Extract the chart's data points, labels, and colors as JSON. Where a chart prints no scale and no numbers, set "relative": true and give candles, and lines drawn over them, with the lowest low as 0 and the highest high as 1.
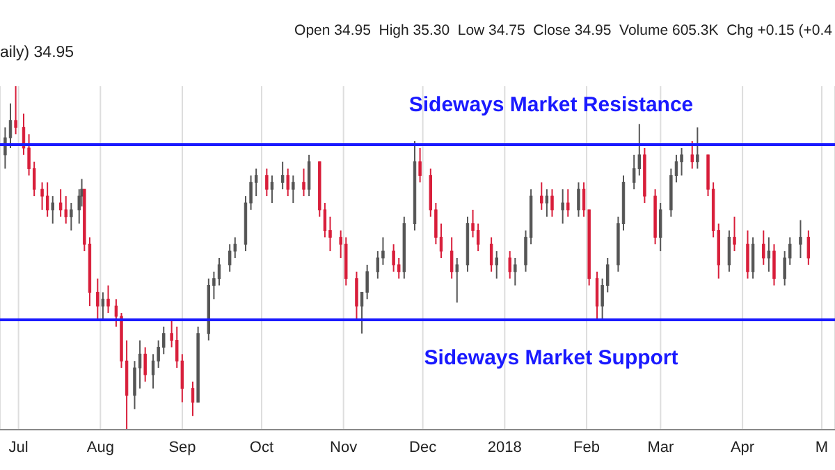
{
  "chart_data": {
    "type": "candlestick",
    "relative": true,
    "annotations": [
      "Open 34.95  High 35.30  Low 34.75  Close 34.95  Volume 605.3K  Chg +0.15 (+0.4",
      "aily) 34.95"
    ],
    "x": [
      "2017-06-26",
      "2017-06-28",
      "2017-06-30",
      "2017-07-03",
      "2017-07-05",
      "2017-07-07",
      "2017-07-10",
      "2017-07-12",
      "2017-07-14",
      "2017-07-17",
      "2017-07-19",
      "2017-07-21",
      "2017-07-24",
      "2017-07-25",
      "2017-07-26",
      "2017-07-28",
      "2017-07-31",
      "2017-08-02",
      "2017-08-04",
      "2017-08-07",
      "2017-08-09",
      "2017-08-11",
      "2017-08-14",
      "2017-08-16",
      "2017-08-18",
      "2017-08-21",
      "2017-08-23",
      "2017-08-25",
      "2017-08-28",
      "2017-08-30",
      "2017-09-01",
      "2017-09-05",
      "2017-09-07",
      "2017-09-11",
      "2017-09-13",
      "2017-09-15",
      "2017-09-19",
      "2017-09-21",
      "2017-09-25",
      "2017-09-27",
      "2017-09-29",
      "2017-10-03",
      "2017-10-05",
      "2017-10-09",
      "2017-10-11",
      "2017-10-13",
      "2017-10-17",
      "2017-10-19",
      "2017-10-23",
      "2017-10-25",
      "2017-10-27",
      "2017-10-31",
      "2017-11-02",
      "2017-11-06",
      "2017-11-08",
      "2017-11-10",
      "2017-11-14",
      "2017-11-16",
      "2017-11-20",
      "2017-11-22",
      "2017-11-24",
      "2017-11-28",
      "2017-11-30",
      "2017-12-04",
      "2017-12-06",
      "2017-12-08",
      "2017-12-12",
      "2017-12-14",
      "2017-12-18",
      "2017-12-20",
      "2017-12-22",
      "2017-12-27",
      "2017-12-29",
      "2018-01-03",
      "2018-01-05",
      "2018-01-09",
      "2018-01-11",
      "2018-01-15",
      "2018-01-17",
      "2018-01-19",
      "2018-01-23",
      "2018-01-25",
      "2018-01-29",
      "2018-01-31",
      "2018-02-02",
      "2018-02-05",
      "2018-02-07",
      "2018-02-09",
      "2018-02-13",
      "2018-02-15",
      "2018-02-19",
      "2018-02-21",
      "2018-02-23",
      "2018-02-27",
      "2018-03-01",
      "2018-03-05",
      "2018-03-07",
      "2018-03-09",
      "2018-03-13",
      "2018-03-15",
      "2018-03-19",
      "2018-03-21",
      "2018-03-23",
      "2018-03-27",
      "2018-03-29",
      "2018-04-03",
      "2018-04-05",
      "2018-04-09",
      "2018-04-11",
      "2018-04-13",
      "2018-04-17",
      "2018-04-19",
      "2018-04-23",
      "2018-04-26"
    ],
    "ohlc": [
      [
        0.8,
        0.88,
        0.76,
        0.85
      ],
      [
        0.85,
        0.95,
        0.82,
        0.9
      ],
      [
        0.9,
        1,
        0.86,
        0.88
      ],
      [
        0.88,
        0.92,
        0.8,
        0.82
      ],
      [
        0.82,
        0.86,
        0.74,
        0.76
      ],
      [
        0.76,
        0.78,
        0.68,
        0.7
      ],
      [
        0.7,
        0.72,
        0.64,
        0.68
      ],
      [
        0.68,
        0.72,
        0.62,
        0.64
      ],
      [
        0.64,
        0.68,
        0.6,
        0.66
      ],
      [
        0.66,
        0.7,
        0.62,
        0.64
      ],
      [
        0.64,
        0.68,
        0.6,
        0.62
      ],
      [
        0.62,
        0.66,
        0.58,
        0.64
      ],
      [
        0.64,
        0.7,
        0.6,
        0.68
      ],
      [
        0.68,
        0.73,
        0.65,
        0.7
      ],
      [
        0.7,
        0.7,
        0.52,
        0.54
      ],
      [
        0.54,
        0.56,
        0.36,
        0.4
      ],
      [
        0.4,
        0.44,
        0.32,
        0.36
      ],
      [
        0.36,
        0.4,
        0.32,
        0.38
      ],
      [
        0.38,
        0.42,
        0.34,
        0.36
      ],
      [
        0.36,
        0.38,
        0.3,
        0.33
      ],
      [
        0.33,
        0.34,
        0.18,
        0.2
      ],
      [
        0.2,
        0.26,
        0,
        0.1
      ],
      [
        0.1,
        0.2,
        0.06,
        0.18
      ],
      [
        0.18,
        0.26,
        0.12,
        0.22
      ],
      [
        0.22,
        0.24,
        0.14,
        0.16
      ],
      [
        0.16,
        0.22,
        0.12,
        0.2
      ],
      [
        0.2,
        0.26,
        0.18,
        0.24
      ],
      [
        0.24,
        0.3,
        0.22,
        0.28
      ],
      [
        0.28,
        0.32,
        0.24,
        0.26
      ],
      [
        0.26,
        0.3,
        0.18,
        0.2
      ],
      [
        0.2,
        0.22,
        0.08,
        0.12
      ],
      [
        0.12,
        0.14,
        0.04,
        0.08
      ],
      [
        0.08,
        0.3,
        0.08,
        0.28
      ],
      [
        0.28,
        0.44,
        0.26,
        0.42
      ],
      [
        0.42,
        0.46,
        0.38,
        0.44
      ],
      [
        0.44,
        0.5,
        0.42,
        0.48
      ],
      [
        0.48,
        0.54,
        0.46,
        0.52
      ],
      [
        0.52,
        0.56,
        0.5,
        0.54
      ],
      [
        0.54,
        0.68,
        0.52,
        0.66
      ],
      [
        0.66,
        0.74,
        0.64,
        0.72
      ],
      [
        0.72,
        0.76,
        0.68,
        0.74
      ],
      [
        0.74,
        0.76,
        0.68,
        0.7
      ],
      [
        0.7,
        0.74,
        0.66,
        0.72
      ],
      [
        0.72,
        0.78,
        0.7,
        0.74
      ],
      [
        0.74,
        0.76,
        0.68,
        0.7
      ],
      [
        0.7,
        0.74,
        0.66,
        0.72
      ],
      [
        0.72,
        0.76,
        0.68,
        0.7
      ],
      [
        0.7,
        0.8,
        0.68,
        0.78
      ],
      [
        0.78,
        0.78,
        0.62,
        0.64
      ],
      [
        0.64,
        0.66,
        0.56,
        0.58
      ],
      [
        0.58,
        0.62,
        0.52,
        0.56
      ],
      [
        0.56,
        0.58,
        0.5,
        0.54
      ],
      [
        0.54,
        0.56,
        0.42,
        0.44
      ],
      [
        0.44,
        0.46,
        0.32,
        0.36
      ],
      [
        0.36,
        0.4,
        0.28,
        0.4
      ],
      [
        0.4,
        0.48,
        0.38,
        0.46
      ],
      [
        0.46,
        0.52,
        0.44,
        0.5
      ],
      [
        0.5,
        0.56,
        0.48,
        0.52
      ],
      [
        0.52,
        0.54,
        0.46,
        0.48
      ],
      [
        0.48,
        0.5,
        0.44,
        0.46
      ],
      [
        0.46,
        0.62,
        0.44,
        0.6
      ],
      [
        0.6,
        0.84,
        0.58,
        0.78
      ],
      [
        0.78,
        0.82,
        0.72,
        0.74
      ],
      [
        0.74,
        0.76,
        0.62,
        0.64
      ],
      [
        0.64,
        0.66,
        0.54,
        0.56
      ],
      [
        0.56,
        0.6,
        0.5,
        0.52
      ],
      [
        0.52,
        0.56,
        0.44,
        0.46
      ],
      [
        0.46,
        0.5,
        0.37,
        0.48
      ],
      [
        0.48,
        0.62,
        0.46,
        0.6
      ],
      [
        0.6,
        0.64,
        0.56,
        0.58
      ],
      [
        0.58,
        0.6,
        0.52,
        0.54
      ],
      [
        0.54,
        0.56,
        0.46,
        0.48
      ],
      [
        0.48,
        0.52,
        0.44,
        0.5
      ],
      [
        0.5,
        0.52,
        0.44,
        0.46
      ],
      [
        0.46,
        0.5,
        0.42,
        0.48
      ],
      [
        0.48,
        0.58,
        0.46,
        0.56
      ],
      [
        0.56,
        0.7,
        0.54,
        0.68
      ],
      [
        0.68,
        0.72,
        0.64,
        0.66
      ],
      [
        0.66,
        0.7,
        0.62,
        0.68
      ],
      [
        0.68,
        0.7,
        0.62,
        0.64
      ],
      [
        0.64,
        0.7,
        0.6,
        0.66
      ],
      [
        0.66,
        0.7,
        0.62,
        0.64
      ],
      [
        0.64,
        0.72,
        0.62,
        0.7
      ],
      [
        0.7,
        0.72,
        0.62,
        0.64
      ],
      [
        0.64,
        0.64,
        0.42,
        0.44
      ],
      [
        0.44,
        0.46,
        0.32,
        0.36
      ],
      [
        0.36,
        0.44,
        0.32,
        0.42
      ],
      [
        0.42,
        0.5,
        0.4,
        0.48
      ],
      [
        0.48,
        0.62,
        0.46,
        0.6
      ],
      [
        0.6,
        0.74,
        0.58,
        0.72
      ],
      [
        0.72,
        0.8,
        0.7,
        0.76
      ],
      [
        0.76,
        0.89,
        0.74,
        0.8
      ],
      [
        0.8,
        0.82,
        0.66,
        0.68
      ],
      [
        0.68,
        0.7,
        0.54,
        0.56
      ],
      [
        0.56,
        0.66,
        0.52,
        0.64
      ],
      [
        0.64,
        0.76,
        0.62,
        0.74
      ],
      [
        0.74,
        0.8,
        0.72,
        0.78
      ],
      [
        0.78,
        0.82,
        0.74,
        0.8
      ],
      [
        0.8,
        0.84,
        0.76,
        0.78
      ],
      [
        0.78,
        0.88,
        0.76,
        0.8
      ],
      [
        0.8,
        0.8,
        0.68,
        0.7
      ],
      [
        0.7,
        0.72,
        0.56,
        0.58
      ],
      [
        0.58,
        0.6,
        0.44,
        0.48
      ],
      [
        0.48,
        0.58,
        0.46,
        0.56
      ],
      [
        0.56,
        0.62,
        0.52,
        0.54
      ],
      [
        0.54,
        0.58,
        0.44,
        0.46
      ],
      [
        0.46,
        0.56,
        0.44,
        0.54
      ],
      [
        0.54,
        0.58,
        0.48,
        0.5
      ],
      [
        0.5,
        0.56,
        0.46,
        0.52
      ],
      [
        0.52,
        0.54,
        0.42,
        0.44
      ],
      [
        0.44,
        0.52,
        0.42,
        0.5
      ],
      [
        0.5,
        0.56,
        0.48,
        0.54
      ],
      [
        0.54,
        0.61,
        0.5,
        0.56
      ],
      [
        0.56,
        0.58,
        0.48,
        0.5
      ]
    ],
    "colors": [
      "#555555",
      "#555555",
      "#d81e3a",
      "#d81e3a",
      "#d81e3a",
      "#d81e3a",
      "#d81e3a",
      "#d81e3a",
      "#555555",
      "#d81e3a",
      "#d81e3a",
      "#555555",
      "#555555",
      "#555555",
      "#d81e3a",
      "#d81e3a",
      "#d81e3a",
      "#555555",
      "#d81e3a",
      "#d81e3a",
      "#d81e3a",
      "#d81e3a",
      "#555555",
      "#555555",
      "#d81e3a",
      "#555555",
      "#555555",
      "#555555",
      "#d81e3a",
      "#d81e3a",
      "#d81e3a",
      "#d81e3a",
      "#555555",
      "#555555",
      "#555555",
      "#555555",
      "#555555",
      "#555555",
      "#555555",
      "#555555",
      "#555555",
      "#d81e3a",
      "#555555",
      "#555555",
      "#d81e3a",
      "#555555",
      "#d81e3a",
      "#555555",
      "#d81e3a",
      "#d81e3a",
      "#d81e3a",
      "#d81e3a",
      "#d81e3a",
      "#d81e3a",
      "#555555",
      "#555555",
      "#555555",
      "#555555",
      "#d81e3a",
      "#d81e3a",
      "#555555",
      "#555555",
      "#d81e3a",
      "#d81e3a",
      "#d81e3a",
      "#d81e3a",
      "#d81e3a",
      "#555555",
      "#555555",
      "#d81e3a",
      "#d81e3a",
      "#d81e3a",
      "#555555",
      "#d81e3a",
      "#555555",
      "#555555",
      "#555555",
      "#d81e3a",
      "#555555",
      "#d81e3a",
      "#555555",
      "#d81e3a",
      "#555555",
      "#d81e3a",
      "#d81e3a",
      "#d81e3a",
      "#555555",
      "#555555",
      "#555555",
      "#555555",
      "#555555",
      "#555555",
      "#d81e3a",
      "#d81e3a",
      "#555555",
      "#555555",
      "#555555",
      "#555555",
      "#d81e3a",
      "#555555",
      "#d81e3a",
      "#d81e3a",
      "#d81e3a",
      "#555555",
      "#d81e3a",
      "#d81e3a",
      "#555555",
      "#d81e3a",
      "#555555",
      "#d81e3a",
      "#555555",
      "#555555",
      "#555555",
      "#d81e3a"
    ],
    "xlim": [
      "2017-06-24",
      "2018-05-06"
    ],
    "xticks": [
      {
        "value": "2017-07-01",
        "label": "Jul"
      },
      {
        "value": "2017-08-01",
        "label": "Aug"
      },
      {
        "value": "2017-09-01",
        "label": "Sep"
      },
      {
        "value": "2017-10-01",
        "label": "Oct"
      },
      {
        "value": "2017-11-01",
        "label": "Nov"
      },
      {
        "value": "2017-12-01",
        "label": "Dec"
      },
      {
        "value": "2018-01-01",
        "label": "2018"
      },
      {
        "value": "2018-02-01",
        "label": "Feb"
      },
      {
        "value": "2018-03-01",
        "label": "Mar"
      },
      {
        "value": "2018-04-01",
        "label": "Apr"
      },
      {
        "value": "2018-05-01",
        "label": "M"
      }
    ],
    "grid": "x",
    "ref_lines": [
      {
        "axis": "y",
        "value": 0.83,
        "label": "Sideways Market Resistance",
        "color": "#1a1aff"
      },
      {
        "axis": "y",
        "value": 0.32,
        "label": "Sideways Market Support",
        "color": "#1a1aff"
      }
    ]
  }
}
